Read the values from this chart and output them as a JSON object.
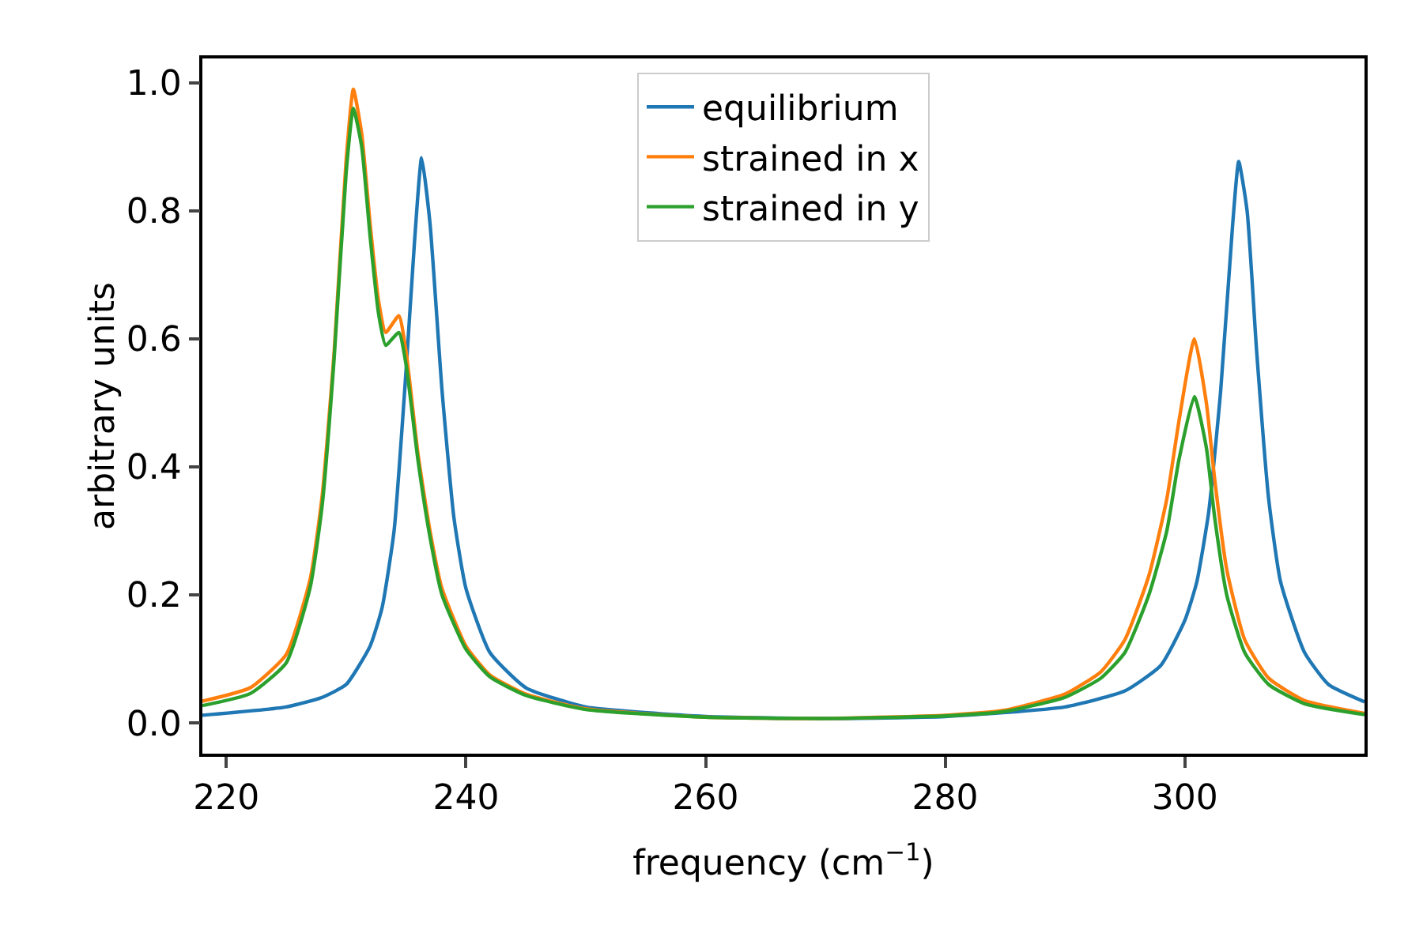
{
  "chart_data": {
    "type": "line",
    "xlabel": "frequency (cm$^{−1}$)",
    "ylabel": "arbitrary units",
    "xlim": [
      218,
      315
    ],
    "ylim": [
      -0.048,
      1.038
    ],
    "xticks": [
      220,
      240,
      260,
      280,
      300
    ],
    "yticks": [
      {
        "value": 0,
        "label": "0.0"
      },
      {
        "value": 0.2,
        "label": "0.2"
      },
      {
        "value": 0.4,
        "label": "0.4"
      },
      {
        "value": 0.6,
        "label": "0.6"
      },
      {
        "value": 0.8,
        "label": "0.8"
      },
      {
        "value": 1,
        "label": "1.0"
      }
    ],
    "grid": false,
    "legend": "top",
    "marker": "none",
    "line_style": "solid",
    "series": [
      {
        "name": "equilibrium",
        "color": "#1f77b4",
        "x": [
          218,
          225,
          228,
          230,
          232,
          233,
          234,
          235,
          235.7,
          236.3,
          237,
          238,
          239,
          240,
          242,
          245,
          250,
          260,
          270,
          280,
          290,
          295,
          298,
          300,
          301,
          302,
          303,
          304,
          304.5,
          305.2,
          306,
          307,
          308,
          310,
          312,
          315
        ],
        "values": [
          0.012,
          0.025,
          0.04,
          0.06,
          0.12,
          0.18,
          0.3,
          0.55,
          0.75,
          0.883,
          0.78,
          0.52,
          0.32,
          0.21,
          0.11,
          0.055,
          0.025,
          0.01,
          0.007,
          0.01,
          0.025,
          0.05,
          0.09,
          0.16,
          0.22,
          0.33,
          0.52,
          0.78,
          0.877,
          0.8,
          0.58,
          0.35,
          0.22,
          0.11,
          0.06,
          0.033
        ]
      },
      {
        "name": "strained in x",
        "color": "#ff7f0e",
        "x": [
          218,
          222,
          225,
          227,
          228,
          229,
          230,
          230.6,
          231.3,
          232,
          232.7,
          233.3,
          234.4,
          235,
          236,
          237,
          238,
          240,
          242,
          245,
          250,
          260,
          270,
          280,
          285,
          290,
          293,
          295,
          297,
          298.5,
          299.5,
          300.8,
          301.8,
          302.5,
          303.5,
          305,
          307,
          310,
          315
        ],
        "values": [
          0.034,
          0.055,
          0.107,
          0.225,
          0.355,
          0.58,
          0.88,
          0.99,
          0.92,
          0.78,
          0.66,
          0.61,
          0.636,
          0.58,
          0.42,
          0.3,
          0.21,
          0.12,
          0.075,
          0.045,
          0.022,
          0.009,
          0.007,
          0.012,
          0.02,
          0.045,
          0.08,
          0.13,
          0.23,
          0.35,
          0.47,
          0.6,
          0.5,
          0.38,
          0.24,
          0.13,
          0.07,
          0.035,
          0.015
        ]
      },
      {
        "name": "strained in y",
        "color": "#2ca02c",
        "x": [
          218,
          222,
          225,
          227,
          228,
          229,
          230,
          230.6,
          231.3,
          232,
          232.7,
          233.3,
          234.4,
          235,
          236,
          237,
          238,
          240,
          242,
          245,
          250,
          260,
          270,
          280,
          285,
          290,
          293,
          295,
          297,
          298.5,
          299.5,
          300.8,
          301.8,
          302.5,
          303.5,
          305,
          307,
          310,
          315
        ],
        "values": [
          0.027,
          0.046,
          0.094,
          0.212,
          0.34,
          0.57,
          0.86,
          0.96,
          0.9,
          0.76,
          0.64,
          0.59,
          0.61,
          0.56,
          0.41,
          0.29,
          0.2,
          0.115,
          0.072,
          0.043,
          0.021,
          0.009,
          0.007,
          0.011,
          0.018,
          0.04,
          0.07,
          0.11,
          0.2,
          0.3,
          0.41,
          0.51,
          0.43,
          0.32,
          0.2,
          0.11,
          0.06,
          0.03,
          0.013
        ]
      }
    ]
  }
}
